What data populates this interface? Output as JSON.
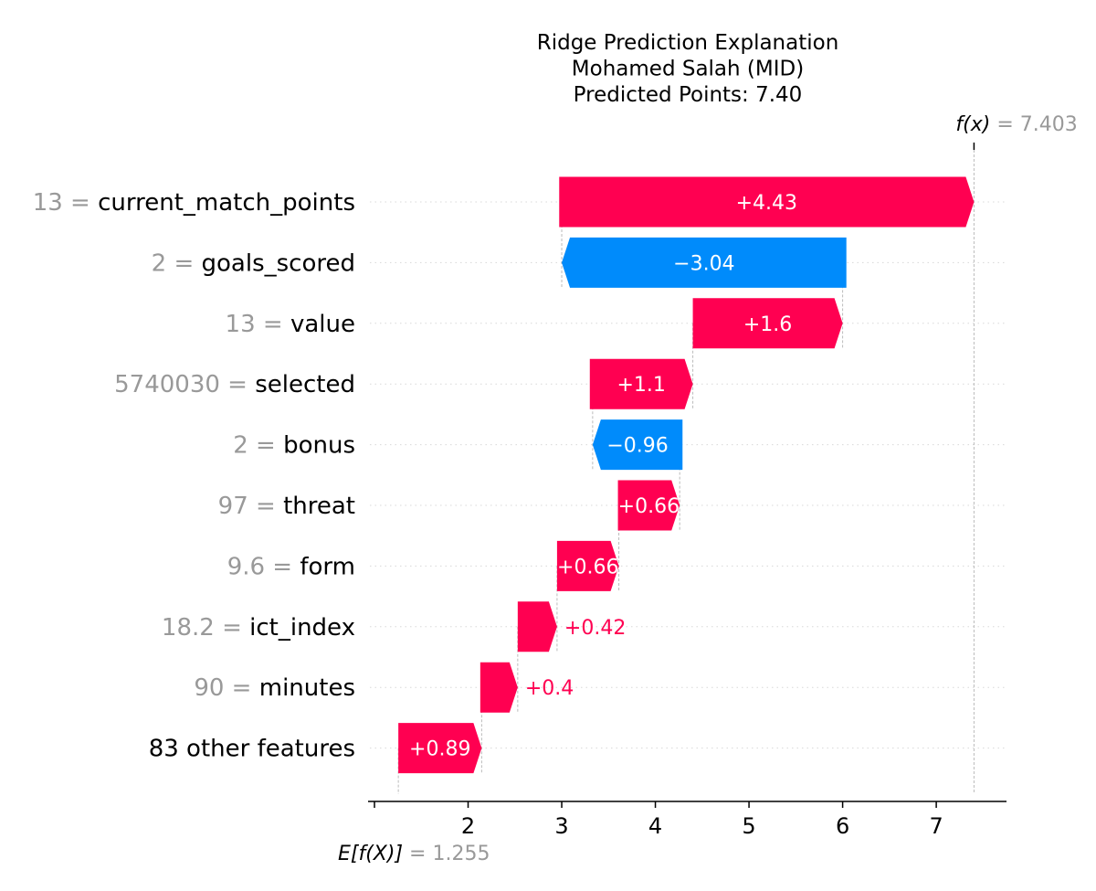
{
  "chart_data": {
    "type": "waterfall",
    "title_lines": [
      "Ridge Prediction Explanation",
      "Mohamed Salah (MID)",
      "Predicted Points: 7.40"
    ],
    "base_value": 1.255,
    "base_value_label": "1.255",
    "base_label": "E[f(X)]",
    "output_value": 7.403,
    "output_value_label": "7.403",
    "output_label": "f(x)",
    "xlim": [
      1.0,
      7.75
    ],
    "xticks": [
      1,
      2,
      3,
      4,
      5,
      6,
      7
    ],
    "xtick_labels": [
      "",
      "2",
      "3",
      "4",
      "5",
      "6",
      "7"
    ],
    "rows": [
      {
        "value_text": "13",
        "feature": "current_match_points",
        "contribution": 4.43,
        "label": "+4.43",
        "start": 2.973
      },
      {
        "value_text": "2",
        "feature": "goals_scored",
        "contribution": -3.04,
        "label": "−3.04",
        "start": 6.04
      },
      {
        "value_text": "13",
        "feature": "value",
        "contribution": 1.6,
        "label": "+1.6",
        "start": 4.4
      },
      {
        "value_text": "5740030",
        "feature": "selected",
        "contribution": 1.1,
        "label": "+1.1",
        "start": 3.3
      },
      {
        "value_text": "2",
        "feature": "bonus",
        "contribution": -0.96,
        "label": "−0.96",
        "start": 4.29
      },
      {
        "value_text": "97",
        "feature": "threat",
        "contribution": 0.66,
        "label": "+0.66",
        "start": 3.6
      },
      {
        "value_text": "9.6",
        "feature": "form",
        "contribution": 0.66,
        "label": "+0.66",
        "start": 2.95
      },
      {
        "value_text": "18.2",
        "feature": "ict_index",
        "contribution": 0.42,
        "label": "+0.42",
        "start": 2.53
      },
      {
        "value_text": "90",
        "feature": "minutes",
        "contribution": 0.4,
        "label": "+0.4",
        "start": 2.13
      },
      {
        "value_text": "",
        "feature": "83 other features",
        "contribution": 0.89,
        "label": "+0.89",
        "start": 1.255
      }
    ],
    "colors": {
      "positive": "#ff0051",
      "negative": "#008bfb",
      "value_gray": "#999999"
    }
  }
}
